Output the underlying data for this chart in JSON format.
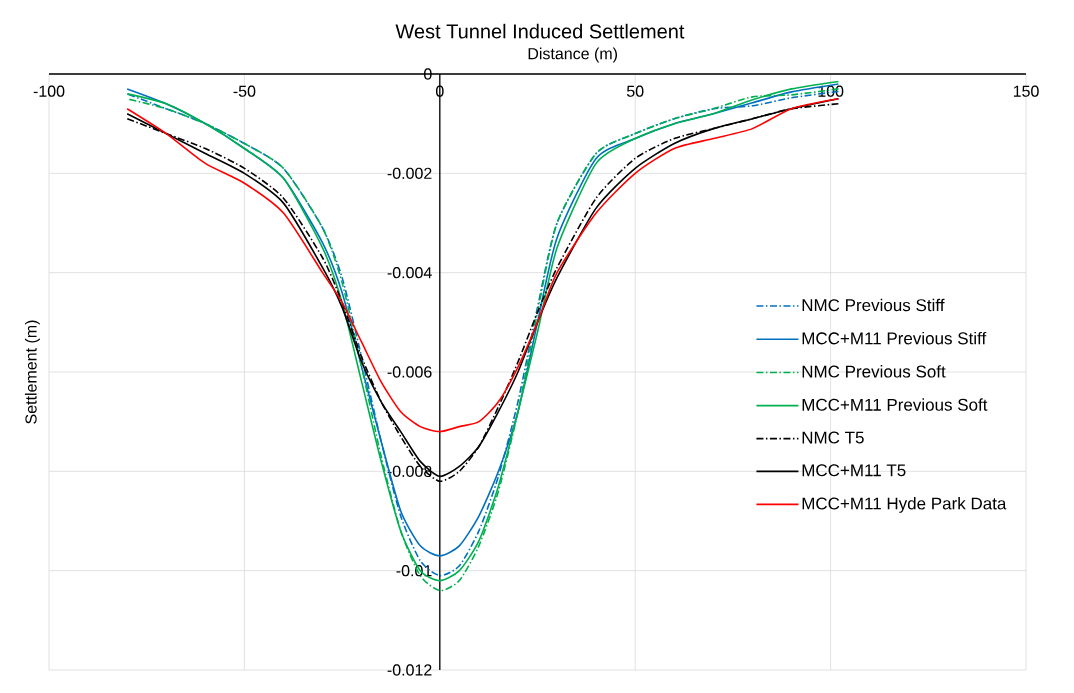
{
  "chart_data": {
    "type": "line",
    "title": "West Tunnel Induced Settlement",
    "xlabel": "Distance (m)",
    "ylabel": "Settlement (m)",
    "x": [
      -80,
      -70,
      -60,
      -50,
      -40,
      -30,
      -25,
      -20,
      -15,
      -10,
      -5,
      0,
      5,
      10,
      15,
      20,
      25,
      30,
      40,
      50,
      60,
      70,
      80,
      90,
      102
    ],
    "xlim": [
      -100,
      150
    ],
    "xticks": [
      -100,
      -50,
      0,
      50,
      100,
      150
    ],
    "ylim": [
      -0.012,
      0
    ],
    "yticks": [
      -0.012,
      -0.01,
      -0.008,
      -0.006,
      -0.004,
      -0.002,
      0
    ],
    "grid": true,
    "legend": "right",
    "series": [
      {
        "name": "NMC Previous Stiff",
        "color": "#0070c0",
        "line_style": "dashdot",
        "values": [
          -0.0004,
          -0.0007,
          -0.001,
          -0.0014,
          -0.0019,
          -0.0031,
          -0.0041,
          -0.0057,
          -0.0074,
          -0.0089,
          -0.0098,
          -0.0101,
          -0.0099,
          -0.0092,
          -0.0081,
          -0.0066,
          -0.0047,
          -0.003,
          -0.0016,
          -0.0012,
          -0.0009,
          -0.0007,
          -0.00064,
          -0.00048,
          -0.00035
        ]
      },
      {
        "name": "MCC+M11 Previous Stiff",
        "color": "#0070c0",
        "line_style": "solid",
        "values": [
          -0.0003,
          -0.0006,
          -0.001,
          -0.0015,
          -0.0021,
          -0.0034,
          -0.0044,
          -0.0059,
          -0.0074,
          -0.0088,
          -0.0095,
          -0.0097,
          -0.0095,
          -0.0089,
          -0.008,
          -0.0068,
          -0.005,
          -0.0033,
          -0.0017,
          -0.0013,
          -0.001,
          -0.0008,
          -0.00058,
          -0.00036,
          -0.0002
        ]
      },
      {
        "name": "NMC Previous Soft",
        "color": "#00b050",
        "line_style": "dashdot",
        "values": [
          -0.0005,
          -0.0007,
          -0.001,
          -0.0014,
          -0.0019,
          -0.0031,
          -0.0042,
          -0.0059,
          -0.0077,
          -0.0092,
          -0.0101,
          -0.0104,
          -0.0102,
          -0.0095,
          -0.0084,
          -0.0068,
          -0.0048,
          -0.003,
          -0.0016,
          -0.0012,
          -0.0009,
          -0.0007,
          -0.00046,
          -0.00042,
          -0.0003
        ]
      },
      {
        "name": "MCC+M11 Previous Soft",
        "color": "#00b050",
        "line_style": "solid",
        "values": [
          -0.0004,
          -0.0006,
          -0.001,
          -0.0015,
          -0.0021,
          -0.0035,
          -0.0046,
          -0.0062,
          -0.0078,
          -0.0092,
          -0.01,
          -0.0102,
          -0.01,
          -0.0094,
          -0.0083,
          -0.0068,
          -0.0052,
          -0.0035,
          -0.0018,
          -0.0013,
          -0.001,
          -0.0008,
          -0.00052,
          -0.0003,
          -0.00015
        ]
      },
      {
        "name": "NMC T5",
        "color": "#000000",
        "line_style": "dashdot",
        "values": [
          -0.0009,
          -0.0012,
          -0.0015,
          -0.0019,
          -0.0025,
          -0.0037,
          -0.0046,
          -0.0057,
          -0.0066,
          -0.0073,
          -0.0079,
          -0.0082,
          -0.008,
          -0.0075,
          -0.0067,
          -0.0058,
          -0.0048,
          -0.0039,
          -0.0025,
          -0.0017,
          -0.0013,
          -0.0011,
          -0.0009,
          -0.0007,
          -0.0006
        ]
      },
      {
        "name": "MCC+M11 T5",
        "color": "#000000",
        "line_style": "solid",
        "values": [
          -0.0008,
          -0.0012,
          -0.0016,
          -0.002,
          -0.0026,
          -0.0039,
          -0.0047,
          -0.0058,
          -0.0066,
          -0.0072,
          -0.0078,
          -0.0081,
          -0.0079,
          -0.0075,
          -0.0068,
          -0.006,
          -0.005,
          -0.0041,
          -0.0027,
          -0.0019,
          -0.0014,
          -0.0011,
          -0.0009,
          -0.0007,
          -0.0005
        ]
      },
      {
        "name": "MCC+M11 Hyde Park Data",
        "color": "#ff0000",
        "line_style": "solid",
        "values": [
          -0.0007,
          -0.0012,
          -0.0018,
          -0.0022,
          -0.0028,
          -0.004,
          -0.0046,
          -0.0054,
          -0.0062,
          -0.0068,
          -0.0071,
          -0.0072,
          -0.0071,
          -0.007,
          -0.0066,
          -0.0059,
          -0.005,
          -0.004,
          -0.0028,
          -0.002,
          -0.0015,
          -0.0013,
          -0.0011,
          -0.0007,
          -0.0005
        ]
      }
    ]
  }
}
